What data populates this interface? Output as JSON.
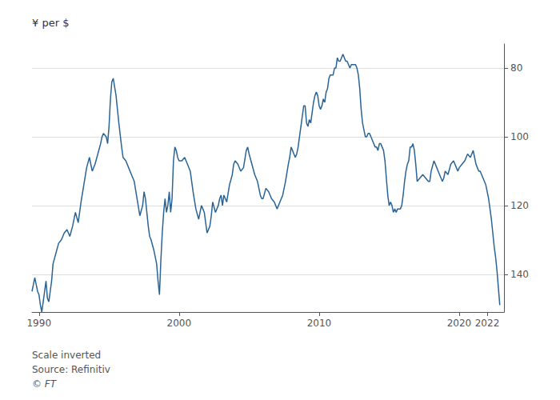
{
  "chart_data": {
    "type": "line",
    "ylabel": "¥ per $",
    "annotations": [
      "Scale inverted",
      "Source: Refinitiv",
      "© FT"
    ],
    "color": "#2a6496",
    "grid": true,
    "xlim": [
      1989.5,
      2023.2
    ],
    "xticks": [
      1990,
      2000,
      2010,
      2020,
      2022
    ],
    "ylim": [
      151,
      73
    ],
    "yticks": [
      80,
      100,
      120,
      140
    ],
    "x": [
      1989.5,
      1989.6,
      1989.7,
      1989.8,
      1989.9,
      1990.0,
      1990.1,
      1990.2,
      1990.3,
      1990.4,
      1990.5,
      1990.6,
      1990.7,
      1990.8,
      1990.9,
      1991.0,
      1991.2,
      1991.4,
      1991.6,
      1991.8,
      1992.0,
      1992.2,
      1992.4,
      1992.6,
      1992.8,
      1993.0,
      1993.2,
      1993.4,
      1993.6,
      1993.8,
      1994.0,
      1994.2,
      1994.4,
      1994.5,
      1994.6,
      1994.8,
      1994.9,
      1995.0,
      1995.1,
      1995.2,
      1995.3,
      1995.5,
      1995.7,
      1995.9,
      1996.0,
      1996.2,
      1996.4,
      1996.6,
      1996.8,
      1997.0,
      1997.2,
      1997.4,
      1997.5,
      1997.6,
      1997.8,
      1997.9,
      1998.0,
      1998.2,
      1998.4,
      1998.5,
      1998.6,
      1998.7,
      1998.8,
      1998.9,
      1999.0,
      1999.1,
      1999.2,
      1999.3,
      1999.4,
      1999.5,
      1999.6,
      1999.7,
      1999.8,
      1999.9,
      2000.0,
      2000.2,
      2000.4,
      2000.6,
      2000.8,
      2001.0,
      2001.2,
      2001.4,
      2001.5,
      2001.6,
      2001.8,
      2001.9,
      2002.0,
      2002.2,
      2002.3,
      2002.4,
      2002.6,
      2002.8,
      2002.9,
      2003.0,
      2003.1,
      2003.2,
      2003.4,
      2003.6,
      2003.8,
      2003.9,
      2004.0,
      2004.2,
      2004.4,
      2004.6,
      2004.8,
      2004.9,
      2005.0,
      2005.2,
      2005.4,
      2005.6,
      2005.8,
      2005.9,
      2006.0,
      2006.2,
      2006.4,
      2006.6,
      2006.8,
      2006.9,
      2007.0,
      2007.2,
      2007.4,
      2007.6,
      2007.8,
      2007.9,
      2008.0,
      2008.1,
      2008.2,
      2008.3,
      2008.4,
      2008.5,
      2008.6,
      2008.7,
      2008.8,
      2008.9,
      2009.0,
      2009.1,
      2009.2,
      2009.3,
      2009.4,
      2009.5,
      2009.6,
      2009.7,
      2009.8,
      2009.9,
      2010.0,
      2010.1,
      2010.2,
      2010.3,
      2010.4,
      2010.5,
      2010.6,
      2010.7,
      2010.8,
      2010.9,
      2011.0,
      2011.1,
      2011.2,
      2011.3,
      2011.4,
      2011.5,
      2011.6,
      2011.7,
      2011.8,
      2011.9,
      2012.0,
      2012.1,
      2012.2,
      2012.3,
      2012.4,
      2012.5,
      2012.6,
      2012.7,
      2012.8,
      2012.9,
      2013.0,
      2013.1,
      2013.2,
      2013.3,
      2013.4,
      2013.5,
      2013.6,
      2013.7,
      2013.8,
      2013.9,
      2014.0,
      2014.1,
      2014.2,
      2014.3,
      2014.4,
      2014.5,
      2014.6,
      2014.7,
      2014.8,
      2014.9,
      2015.0,
      2015.1,
      2015.2,
      2015.3,
      2015.4,
      2015.5,
      2015.6,
      2015.7,
      2015.8,
      2015.9,
      2016.0,
      2016.1,
      2016.2,
      2016.3,
      2016.4,
      2016.5,
      2016.6,
      2016.7,
      2016.8,
      2016.9,
      2017.0,
      2017.2,
      2017.4,
      2017.6,
      2017.8,
      2017.9,
      2018.0,
      2018.2,
      2018.4,
      2018.6,
      2018.8,
      2018.9,
      2019.0,
      2019.2,
      2019.4,
      2019.6,
      2019.8,
      2019.9,
      2020.0,
      2020.2,
      2020.4,
      2020.6,
      2020.8,
      2020.9,
      2021.0,
      2021.1,
      2021.2,
      2021.3,
      2021.4,
      2021.5,
      2021.6,
      2021.7,
      2021.8,
      2021.9,
      2022.0,
      2022.1,
      2022.2,
      2022.3,
      2022.4,
      2022.5,
      2022.6,
      2022.7,
      2022.8,
      2022.9
    ],
    "values": [
      145,
      143,
      141,
      143,
      145,
      146,
      149,
      151,
      148,
      145,
      142,
      147,
      148,
      145,
      142,
      137,
      134,
      131,
      130,
      128,
      127,
      129,
      126,
      122,
      125,
      119,
      114,
      109,
      106,
      110,
      108,
      105,
      102,
      100,
      99,
      100,
      102,
      97,
      89,
      84,
      83,
      88,
      96,
      103,
      106,
      107,
      109,
      111,
      113,
      118,
      123,
      120,
      116,
      118,
      126,
      129,
      130,
      133,
      137,
      142,
      146,
      136,
      128,
      122,
      118,
      122,
      120,
      116,
      122,
      118,
      107,
      103,
      104,
      106,
      107,
      107,
      106,
      108,
      110,
      116,
      121,
      124,
      122,
      120,
      122,
      125,
      128,
      126,
      123,
      119,
      122,
      120,
      118,
      117,
      120,
      117,
      119,
      114,
      111,
      108,
      107,
      108,
      110,
      109,
      104,
      103,
      105,
      108,
      111,
      113,
      117,
      118,
      118,
      115,
      116,
      118,
      119,
      120,
      121,
      119,
      117,
      113,
      108,
      106,
      103,
      104,
      105,
      106,
      105,
      103,
      100,
      97,
      94,
      91,
      91,
      96,
      97,
      95,
      96,
      93,
      90,
      88,
      87,
      88,
      91,
      92,
      91,
      89,
      90,
      87,
      86,
      83,
      82,
      82,
      82,
      80,
      80,
      77,
      78,
      78,
      77,
      76,
      77,
      78,
      78,
      79,
      80,
      79,
      79,
      79,
      79,
      80,
      82,
      86,
      92,
      96,
      98,
      100,
      100,
      99,
      99,
      100,
      101,
      102,
      103,
      103,
      104,
      102,
      102,
      103,
      104,
      107,
      112,
      117,
      120,
      119,
      120,
      122,
      121,
      122,
      121,
      121,
      121,
      120,
      117,
      113,
      110,
      108,
      107,
      103,
      103,
      102,
      104,
      108,
      113,
      112,
      111,
      112,
      113,
      113,
      110,
      107,
      109,
      111,
      113,
      112,
      110,
      111,
      108,
      107,
      109,
      110,
      109,
      108,
      107,
      105,
      106,
      105,
      104,
      106,
      108,
      109,
      110,
      110,
      111,
      112,
      113,
      114,
      116,
      118,
      121,
      124,
      128,
      132,
      135,
      139,
      144,
      149
    ]
  }
}
